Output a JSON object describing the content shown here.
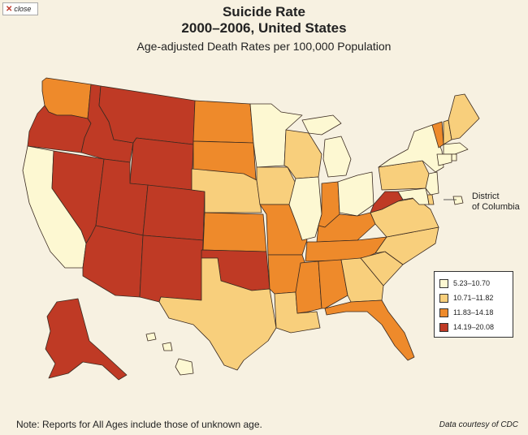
{
  "close_button": {
    "label": "close",
    "icon": "x-icon"
  },
  "title_line1": "Suicide Rate",
  "title_line2": "2000–2006, United States",
  "subtitle": "Age-adjusted Death Rates per 100,000 Population",
  "dc_label_line1": "District",
  "dc_label_line2": "of Columbia",
  "note": "Note: Reports for All Ages include those of unknown age.",
  "credit": "Data courtesy of CDC",
  "legend": [
    {
      "label": "5.23–10.70",
      "color": "#fdf8d2"
    },
    {
      "label": "10.71–11.82",
      "color": "#f8cf7c"
    },
    {
      "label": "11.83–14.18",
      "color": "#ee8a2b"
    },
    {
      "label": "14.19–20.08",
      "color": "#bf3a25"
    }
  ],
  "states": {
    "WA": 3,
    "OR": 4,
    "CA": 1,
    "NV": 4,
    "ID": 4,
    "MT": 4,
    "WY": 4,
    "UT": 4,
    "AZ": 4,
    "CO": 4,
    "NM": 4,
    "ND": 3,
    "SD": 3,
    "NE": 2,
    "KS": 3,
    "OK": 4,
    "TX": 2,
    "MN": 1,
    "IA": 2,
    "MO": 3,
    "AR": 3,
    "LA": 2,
    "WI": 2,
    "IL": 1,
    "MI": 1,
    "IN": 3,
    "OH": 1,
    "KY": 3,
    "TN": 3,
    "MS": 3,
    "AL": 3,
    "GA": 2,
    "FL": 3,
    "SC": 2,
    "NC": 2,
    "VA": 2,
    "WV": 4,
    "PA": 2,
    "NY": 1,
    "VT": 3,
    "NH": 2,
    "ME": 2,
    "MA": 1,
    "RI": 1,
    "CT": 1,
    "NJ": 1,
    "DE": 2,
    "MD": 1,
    "DC": 1,
    "AK": 4,
    "HI": 1
  }
}
